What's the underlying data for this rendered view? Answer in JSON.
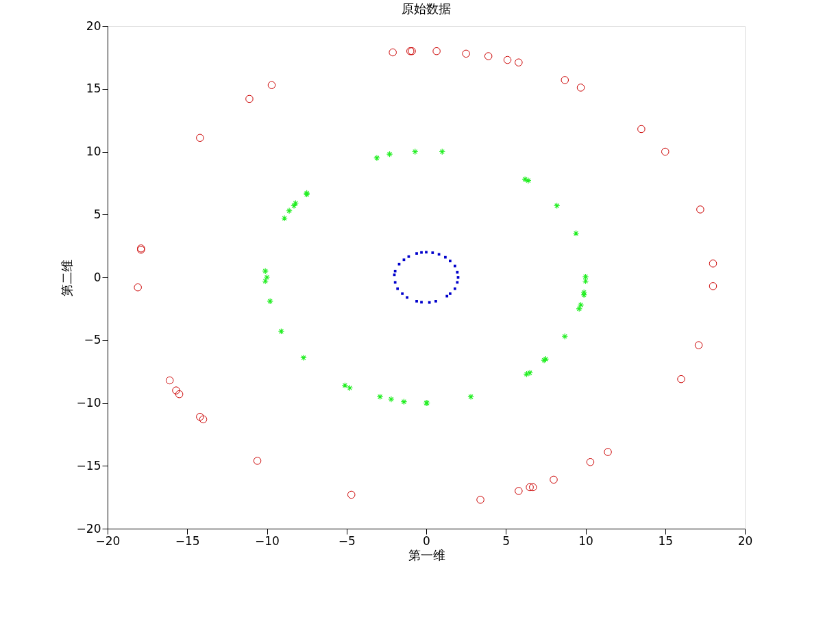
{
  "chart_data": {
    "type": "scatter",
    "title": "原始数据",
    "xlabel": "第一维",
    "ylabel": "第二维",
    "xlim": [
      -20,
      20
    ],
    "ylim": [
      -20,
      20
    ],
    "xticks": [
      -20,
      -15,
      -10,
      -5,
      0,
      5,
      10,
      15,
      20
    ],
    "yticks": [
      -20,
      -15,
      -10,
      -5,
      0,
      5,
      10,
      15,
      20
    ],
    "grid": false,
    "series": [
      {
        "color": "#cc0000",
        "marker": "circle",
        "x": [
          -2.1,
          -1.0,
          -0.9,
          0.65,
          2.5,
          3.9,
          5.1,
          5.8,
          8.7,
          9.7,
          13.5,
          15.0,
          17.2,
          18.0,
          18.0,
          17.1,
          16.0,
          11.4,
          10.3,
          8.0,
          6.5,
          6.7,
          5.8,
          3.4,
          -4.7,
          -10.6,
          -14.0,
          -14.2,
          -15.5,
          -15.7,
          -16.1,
          -18.1,
          -17.9,
          -17.9,
          -14.2,
          -11.1,
          -9.7
        ],
        "values": [
          17.9,
          18.0,
          18.0,
          18.0,
          17.8,
          17.6,
          17.3,
          17.1,
          15.7,
          15.1,
          11.8,
          10.0,
          5.4,
          1.1,
          -0.7,
          -5.4,
          -8.1,
          -13.9,
          -14.7,
          -16.1,
          -16.7,
          -16.7,
          -17.0,
          -17.7,
          -17.3,
          -14.6,
          -11.3,
          -11.1,
          -9.3,
          -9.0,
          -8.2,
          -0.8,
          2.2,
          2.3,
          11.1,
          14.2,
          15.3
        ]
      },
      {
        "color": "#22ee22",
        "marker": "cross",
        "x": [
          -3.1,
          -2.3,
          -0.7,
          1.0,
          6.2,
          6.4,
          8.2,
          9.4,
          10.0,
          10.0,
          9.9,
          9.9,
          9.7,
          9.6,
          8.7,
          7.5,
          7.4,
          6.5,
          6.3,
          2.8,
          0.0,
          0.05,
          -1.4,
          -2.2,
          -2.9,
          -4.8,
          -5.1,
          -7.7,
          -9.1,
          -9.8,
          -10.1,
          -10.0,
          -10.1,
          -8.9,
          -8.6,
          -8.3,
          -8.2,
          -7.5,
          -7.5
        ],
        "values": [
          9.5,
          9.8,
          10.0,
          10.0,
          7.8,
          7.7,
          5.7,
          3.5,
          0.05,
          -0.3,
          -1.2,
          -1.4,
          -2.2,
          -2.5,
          -4.7,
          -6.5,
          -6.6,
          -7.6,
          -7.7,
          -9.5,
          -10.0,
          -10.0,
          -9.9,
          -9.7,
          -9.5,
          -8.8,
          -8.6,
          -6.4,
          -4.3,
          -1.9,
          -0.3,
          0.0,
          0.5,
          4.7,
          5.3,
          5.7,
          5.9,
          6.6,
          6.7
        ]
      },
      {
        "color": "#0000cc",
        "marker": "square",
        "x": [
          0,
          0.4,
          0.8,
          1.2,
          1.5,
          1.8,
          1.95,
          2,
          1.95,
          1.8,
          1.5,
          1.3,
          0.6,
          0.2,
          -0.3,
          -0.6,
          -1.2,
          -1.5,
          -1.8,
          -1.95,
          -2,
          -1.95,
          -1.7,
          -1.4,
          -1.1,
          -0.6,
          -0.3
        ],
        "values": [
          2,
          1.96,
          1.83,
          1.6,
          1.3,
          0.9,
          0.4,
          0,
          -0.4,
          -0.9,
          -1.3,
          -1.5,
          -1.9,
          -2,
          -1.98,
          -1.9,
          -1.6,
          -1.3,
          -0.9,
          -0.4,
          0.2,
          0.5,
          1.05,
          1.4,
          1.65,
          1.9,
          1.98
        ]
      }
    ]
  }
}
